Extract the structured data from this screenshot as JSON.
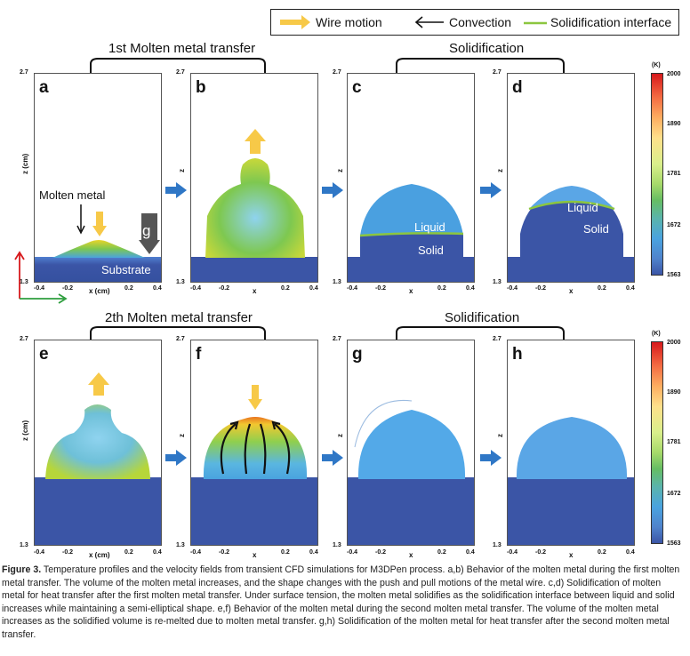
{
  "legend": {
    "wire_motion": "Wire motion",
    "convection": "Convection",
    "solidification_interface": "Solidification interface",
    "wire_color": "#f7c948",
    "interface_color": "#8cc63f"
  },
  "top_row": {
    "section_left": "1st Molten metal transfer",
    "section_right": "Solidification",
    "panels": [
      "a",
      "b",
      "c",
      "d"
    ]
  },
  "bottom_row": {
    "section_left": "2th Molten metal transfer",
    "section_right": "Solidification",
    "panels": [
      "e",
      "f",
      "g",
      "h"
    ]
  },
  "axes": {
    "z_top": "2.7",
    "z_bottom": "1.3",
    "z_label_cm": "z (cm)",
    "z_label": "z",
    "x_label_cm": "x (cm)",
    "x_label": "x",
    "x_ticks": [
      "-0.4",
      "-0.2",
      "0.2",
      "0.4"
    ]
  },
  "annotations": {
    "molten_metal": "Molten metal",
    "g": "g",
    "substrate": "Substrate",
    "liquid": "Liquid",
    "solid": "Solid"
  },
  "colorbar": {
    "unit": "(K)",
    "ticks": [
      "2000",
      "1890",
      "1781",
      "1672",
      "1563"
    ]
  },
  "caption": {
    "label": "Figure 3.",
    "text": " Temperature profiles and the velocity fields from transient CFD simulations for M3DPen process. a,b) Behavior of the molten metal during the first molten metal transfer. The volume of the molten metal increases, and the shape changes with the push and pull motions of the metal wire. c,d) Solidification of molten metal for heat transfer after the first molten metal transfer. Under surface tension, the molten metal solidifies as the solidification interface between liquid and solid increases while maintaining a semi-elliptical shape. e,f) Behavior of the molten metal during the second molten metal transfer. The volume of the molten metal increases as the solidified volume is re-melted due to molten metal transfer. g,h) Solidification of the molten metal for heat transfer after the second molten metal transfer."
  }
}
